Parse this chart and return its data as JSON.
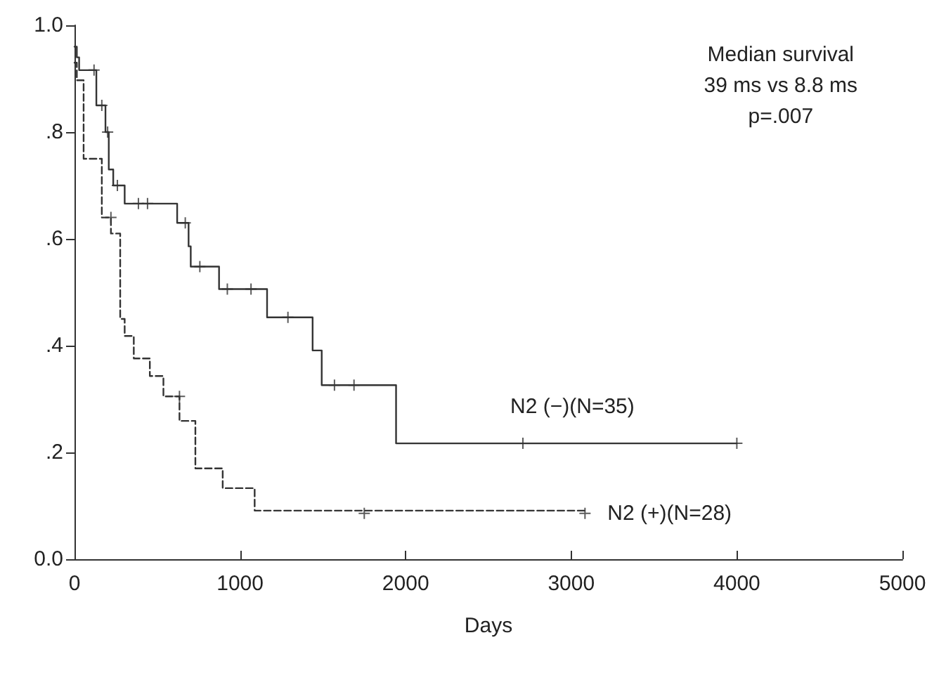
{
  "chart_data": {
    "type": "step",
    "xlabel": "Days",
    "annotations": [
      "Median survival\n39 ms vs 8.8 ms\np=.007"
    ],
    "xlim": [
      0,
      5000
    ],
    "xticks": [
      0,
      1000,
      2000,
      3000,
      4000,
      5000
    ],
    "ylim": [
      0,
      1
    ],
    "yticks": [
      {
        "value": 0,
        "label": "0.0"
      },
      {
        "value": 0.2,
        "label": ".2"
      },
      {
        "value": 0.4,
        "label": ".4"
      },
      {
        "value": 0.6,
        "label": ".6"
      },
      {
        "value": 0.8,
        "label": ".8"
      },
      {
        "value": 1,
        "label": "1.0"
      }
    ],
    "grid": false,
    "legend": false,
    "series": [
      {
        "name": "N2 (−)(N=35)",
        "color": "#333333",
        "line_style": "solid",
        "x": [
          0,
          14,
          28,
          132,
          187,
          207,
          234,
          303,
          620,
          689,
          702,
          873,
          1163,
          1438,
          1493,
          1942,
          4000
        ],
        "values": [
          0.96,
          0.94,
          0.916,
          0.85,
          0.8,
          0.73,
          0.7,
          0.666,
          0.63,
          0.586,
          0.548,
          0.506,
          0.453,
          0.391,
          0.326,
          0.217,
          0.217
        ]
      },
      {
        "name": "N2 (+)(N=28)",
        "color": "#333333",
        "line_style": "dashed",
        "x": [
          0,
          14,
          55,
          165,
          220,
          276,
          303,
          358,
          455,
          537,
          634,
          730,
          895,
          1088,
          3083
        ],
        "values": [
          0.93,
          0.897,
          0.75,
          0.64,
          0.61,
          0.45,
          0.418,
          0.376,
          0.343,
          0.305,
          0.259,
          0.17,
          0.133,
          0.091,
          0.086
        ]
      },
      {
        "type": "scatter",
        "marker": "cross",
        "color": "#333333",
        "x": [
          118,
          165,
          200,
          259,
          386,
          441,
          669,
          757,
          923,
          1066,
          1289,
          1570,
          1688,
          2708,
          4000
        ],
        "values": [
          0.916,
          0.85,
          0.8,
          0.7,
          0.666,
          0.666,
          0.63,
          0.548,
          0.506,
          0.506,
          0.453,
          0.326,
          0.326,
          0.217,
          0.217
        ]
      },
      {
        "type": "scatter",
        "marker": "cross",
        "color": "#333333",
        "x": [
          220,
          634,
          1750,
          3083
        ],
        "values": [
          0.64,
          0.305,
          0.086,
          0.086
        ]
      }
    ]
  }
}
